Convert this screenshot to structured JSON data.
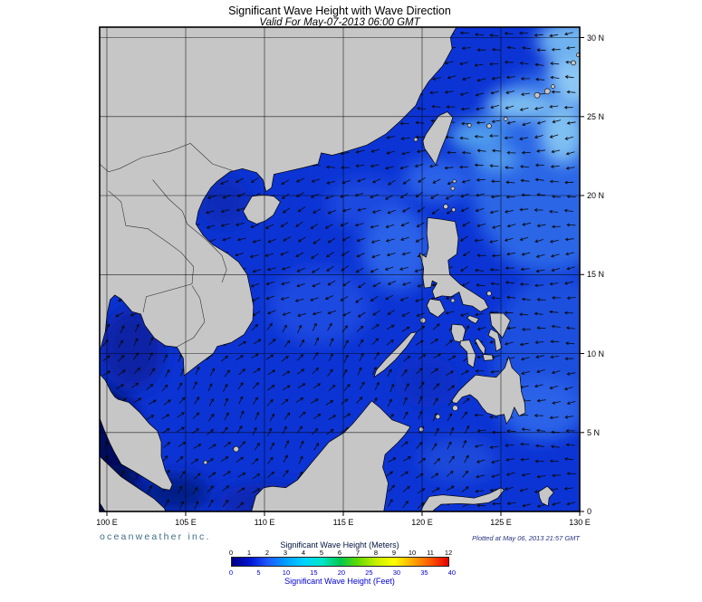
{
  "title": "Significant Wave Height with Wave Direction",
  "subtitle": "Valid For May-07-2013 06:00 GMT",
  "map": {
    "extent": {
      "lon_min": 100,
      "lon_max": 130,
      "lat_min": 0,
      "lat_max": 30
    },
    "lon_values": [
      100,
      105,
      110,
      115,
      120,
      125,
      130
    ],
    "lon_labels": [
      "100 E",
      "105 E",
      "110 E",
      "115 E",
      "120 E",
      "125 E",
      "130 E"
    ],
    "lat_values": [
      30,
      25,
      20,
      15,
      10,
      5,
      0
    ],
    "lat_labels": [
      "30 N",
      "25 N",
      "20 N",
      "15 N",
      "10 N",
      "5 N",
      "0"
    ],
    "land_color": "#c6c6c6",
    "coast_color": "#000000",
    "border_internal_color": "#333333",
    "grid_color": "#000000",
    "ocean_base_color": "#0c34d4",
    "arrow_color": "#0a0a0a",
    "wave_patches": [
      {
        "name": "malacca-andaman-low",
        "lon": 99.9,
        "lat": 4.3,
        "rx": 2.2,
        "ry": 3.6,
        "color": "#001060"
      },
      {
        "name": "west-sumatra-low",
        "lon": 100.2,
        "lat": 1.0,
        "rx": 2.0,
        "ry": 2.0,
        "color": "#000f5a"
      },
      {
        "name": "singapore-strait-low",
        "lon": 104.3,
        "lat": 1.2,
        "rx": 2.2,
        "ry": 1.1,
        "color": "#041b86"
      },
      {
        "name": "gulf-of-thailand-low",
        "lon": 101.6,
        "lat": 10.3,
        "rx": 2.0,
        "ry": 2.6,
        "color": "#0722a4"
      },
      {
        "name": "gulf-of-tonkin-low",
        "lon": 107.4,
        "lat": 19.6,
        "rx": 1.6,
        "ry": 1.6,
        "color": "#0a2ab8"
      },
      {
        "name": "java-sea-low",
        "lon": 110.0,
        "lat": 0.6,
        "rx": 3.0,
        "ry": 1.2,
        "color": "#0a28b0"
      },
      {
        "name": "sulu-sea",
        "lon": 120.3,
        "lat": 8.2,
        "rx": 2.0,
        "ry": 1.6,
        "color": "#0b2fc6"
      },
      {
        "name": "central-scs-moderate",
        "lon": 113.5,
        "lat": 13.0,
        "rx": 3.2,
        "ry": 2.4,
        "color": "#1a4ae0"
      },
      {
        "name": "north-scs-moderate",
        "lon": 116.5,
        "lat": 19.5,
        "rx": 2.5,
        "ry": 1.6,
        "color": "#1a4ae0"
      },
      {
        "name": "west-luzon-moderate",
        "lon": 118.4,
        "lat": 16.6,
        "rx": 2.2,
        "ry": 2.6,
        "color": "#2a62e8"
      },
      {
        "name": "luzon-strait-moderate",
        "lon": 121.0,
        "lat": 21.0,
        "rx": 2.2,
        "ry": 1.4,
        "color": "#2a62e8"
      },
      {
        "name": "philippine-sea-moderate",
        "lon": 128.0,
        "lat": 21.5,
        "rx": 5.0,
        "ry": 6.5,
        "color": "#2a66e6"
      },
      {
        "name": "philippine-sea-south",
        "lon": 128.5,
        "lat": 10.0,
        "rx": 4.0,
        "ry": 5.0,
        "color": "#1c50de"
      },
      {
        "name": "east-mindanao",
        "lon": 127.5,
        "lat": 6.5,
        "rx": 2.5,
        "ry": 2.0,
        "color": "#2a62e8"
      },
      {
        "name": "celebes-sea",
        "lon": 122.3,
        "lat": 3.3,
        "rx": 2.4,
        "ry": 1.4,
        "color": "#1b4ada"
      },
      {
        "name": "taiwan-east-light",
        "lon": 123.5,
        "lat": 23.8,
        "rx": 1.8,
        "ry": 1.0,
        "color": "#4f9cec"
      },
      {
        "name": "pacific-streak-1",
        "lon": 126.3,
        "lat": 25.7,
        "rx": 2.2,
        "ry": 0.9,
        "color": "#7fc0f2"
      },
      {
        "name": "pacific-streak-2",
        "lon": 128.9,
        "lat": 24.0,
        "rx": 1.4,
        "ry": 2.0,
        "color": "#7fc0f2"
      },
      {
        "name": "pacific-streak-3",
        "lon": 129.7,
        "lat": 27.8,
        "rx": 1.6,
        "ry": 2.2,
        "color": "#8cc8f4"
      },
      {
        "name": "pacific-streak-4",
        "lon": 124.8,
        "lat": 22.3,
        "rx": 1.3,
        "ry": 0.7,
        "color": "#5aa4ee"
      },
      {
        "name": "ne-corner-light",
        "lon": 129.5,
        "lat": 29.8,
        "rx": 2.2,
        "ry": 1.4,
        "color": "#6fb2f0"
      }
    ],
    "arrow_field": {
      "description": "wave direction arrows",
      "regions": [
        {
          "name": "pacific-and-north",
          "direction_deg_toward": 185
        },
        {
          "name": "north-south-china-sea",
          "direction_deg_toward": 205
        },
        {
          "name": "south-scs-and-gulfs",
          "direction_deg_toward": 48
        }
      ]
    }
  },
  "credits": {
    "left": "oceanweather inc.",
    "right": "Plotted at May 06, 2013 21:57 GMT"
  },
  "legend": {
    "meters_title": "Significant Wave Height (Meters)",
    "feet_title": "Significant Wave Height (Feet)",
    "meters_ticks": [
      "0",
      "1",
      "2",
      "3",
      "4",
      "5",
      "6",
      "7",
      "8",
      "9",
      "10",
      "11",
      "12"
    ],
    "feet_ticks": [
      "0",
      "5",
      "10",
      "15",
      "20",
      "25",
      "30",
      "35",
      "40"
    ],
    "feet_values": [
      0,
      5,
      10,
      15,
      20,
      25,
      30,
      35,
      40
    ],
    "meters_max": 12,
    "colorbar": [
      "#000082",
      "#0014d2",
      "#1e5aff",
      "#00a0ff",
      "#00d2ff",
      "#00e6c8",
      "#00c850",
      "#64dc00",
      "#c8f000",
      "#ffff00",
      "#ffaa00",
      "#ff5a00",
      "#e60000"
    ]
  }
}
